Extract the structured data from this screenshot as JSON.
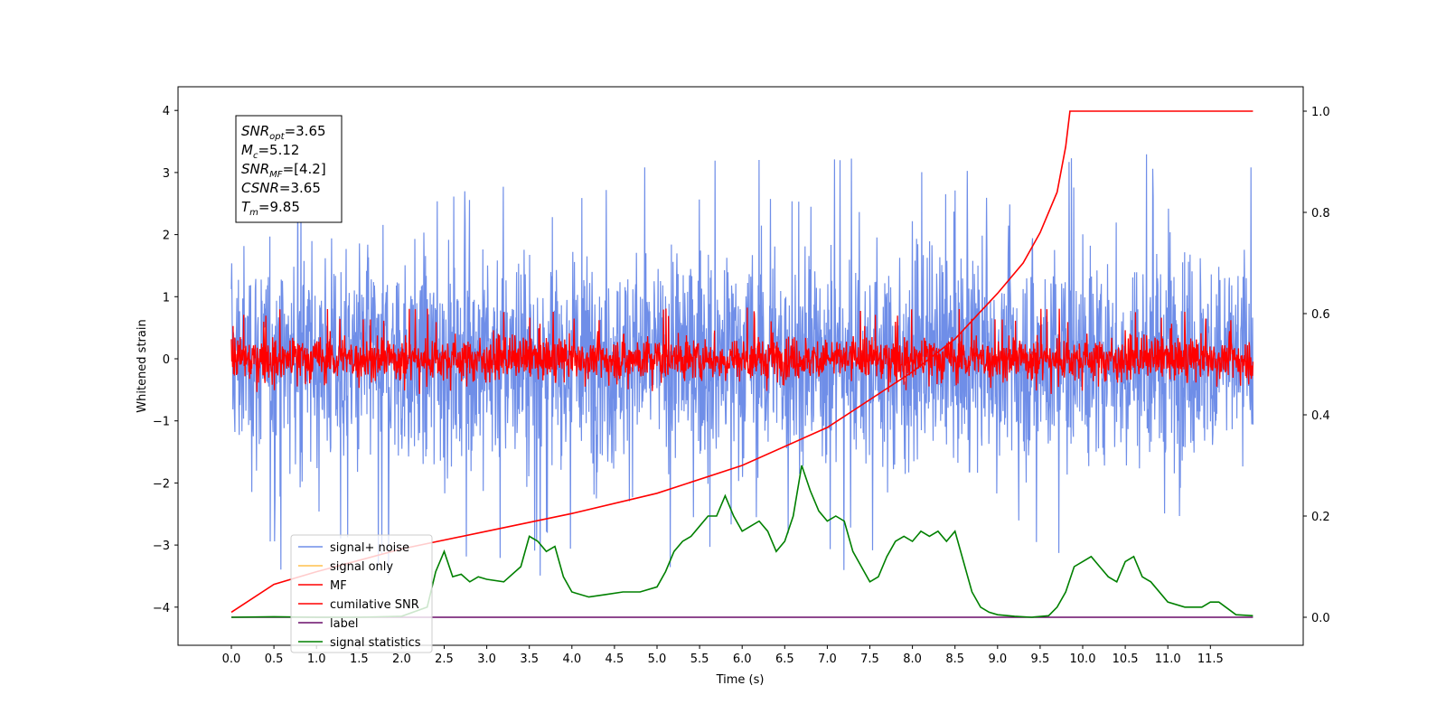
{
  "chart_data": {
    "type": "line",
    "xlabel": "Time (s)",
    "ylabel": "Whitened strain",
    "xlim": [
      -0.6,
      12.6
    ],
    "ylim": [
      -4.6,
      4.4
    ],
    "y2lim": [
      -0.05,
      1.05
    ],
    "grid": false,
    "legend_position": "lower-left",
    "xticks": [
      "0.0",
      "0.5",
      "1.0",
      "1.5",
      "2.0",
      "2.5",
      "3.0",
      "3.5",
      "4.0",
      "4.5",
      "5.0",
      "5.5",
      "6.0",
      "6.5",
      "7.0",
      "7.5",
      "8.0",
      "8.5",
      "9.0",
      "9.5",
      "10.0",
      "10.5",
      "11.0",
      "11.5"
    ],
    "yticks": [
      "4",
      "3",
      "2",
      "1",
      "0",
      "−1",
      "−2",
      "−3",
      "−4"
    ],
    "y2ticks": [
      "1.0",
      "0.8",
      "0.6",
      "0.4",
      "0.2",
      "0.0"
    ],
    "info_box": [
      {
        "sym": "SNR",
        "sub": "opt",
        "val": "=3.65"
      },
      {
        "sym": "M",
        "sub": "c",
        "val": "=5.12"
      },
      {
        "sym": "SNR",
        "sub": "MF",
        "val": "=[4.2]"
      },
      {
        "sym": "CSNR",
        "sub": "",
        "val": "=3.65"
      },
      {
        "sym": "T",
        "sub": "m",
        "val": "=9.85"
      }
    ],
    "series": [
      {
        "name": "signal+ noise",
        "color": "#6f8ee8",
        "kind": "noise",
        "center": 0.0,
        "band": [
          -2.7,
          2.6
        ],
        "x_range": [
          0.0,
          12.0
        ]
      },
      {
        "name": "signal only",
        "color": "#ffc04d",
        "kind": "flat",
        "values": []
      },
      {
        "name": "MF",
        "color": "#ff0000",
        "kind": "noise",
        "center": 0.0,
        "band": [
          -0.45,
          0.65
        ],
        "x_range": [
          0.0,
          12.0
        ]
      },
      {
        "name": "cumilative SNR",
        "color": "#ff0000",
        "axis": "right",
        "x": [
          0.0,
          0.5,
          1.0,
          2.0,
          3.0,
          4.0,
          5.0,
          6.0,
          7.0,
          8.0,
          8.5,
          9.0,
          9.3,
          9.5,
          9.7,
          9.8,
          9.85,
          10.5,
          11.0,
          12.0
        ],
        "values": [
          0.01,
          0.065,
          0.09,
          0.135,
          0.17,
          0.205,
          0.245,
          0.3,
          0.375,
          0.485,
          0.55,
          0.64,
          0.7,
          0.76,
          0.84,
          0.93,
          1.0,
          1.0,
          1.0,
          1.0
        ]
      },
      {
        "name": "label",
        "color": "#6a0d6a",
        "axis": "right",
        "x": [
          0.0,
          12.0
        ],
        "values": [
          0.0,
          0.0
        ]
      },
      {
        "name": "signal statistics",
        "color": "#008000",
        "axis": "right",
        "x": [
          0.0,
          0.5,
          1.0,
          1.5,
          2.0,
          2.3,
          2.4,
          2.5,
          2.6,
          2.7,
          2.8,
          2.9,
          3.0,
          3.2,
          3.4,
          3.5,
          3.6,
          3.7,
          3.8,
          3.9,
          4.0,
          4.2,
          4.4,
          4.6,
          4.8,
          5.0,
          5.1,
          5.2,
          5.3,
          5.4,
          5.5,
          5.6,
          5.7,
          5.8,
          5.9,
          6.0,
          6.1,
          6.2,
          6.3,
          6.4,
          6.5,
          6.6,
          6.7,
          6.8,
          6.9,
          7.0,
          7.1,
          7.2,
          7.3,
          7.4,
          7.5,
          7.6,
          7.7,
          7.8,
          7.9,
          8.0,
          8.1,
          8.2,
          8.3,
          8.4,
          8.5,
          8.6,
          8.7,
          8.8,
          8.9,
          9.0,
          9.2,
          9.4,
          9.6,
          9.7,
          9.8,
          9.9,
          10.0,
          10.1,
          10.2,
          10.3,
          10.4,
          10.5,
          10.6,
          10.7,
          10.8,
          11.0,
          11.2,
          11.4,
          11.5,
          11.6,
          11.8,
          12.0
        ],
        "values": [
          0.0,
          0.001,
          0.0,
          0.0,
          0.002,
          0.02,
          0.09,
          0.13,
          0.08,
          0.085,
          0.07,
          0.08,
          0.075,
          0.07,
          0.1,
          0.16,
          0.15,
          0.13,
          0.14,
          0.08,
          0.05,
          0.04,
          0.045,
          0.05,
          0.05,
          0.06,
          0.09,
          0.13,
          0.15,
          0.16,
          0.18,
          0.2,
          0.2,
          0.24,
          0.2,
          0.17,
          0.18,
          0.19,
          0.17,
          0.13,
          0.15,
          0.2,
          0.3,
          0.25,
          0.21,
          0.19,
          0.2,
          0.19,
          0.13,
          0.1,
          0.07,
          0.08,
          0.12,
          0.15,
          0.16,
          0.15,
          0.17,
          0.16,
          0.17,
          0.15,
          0.17,
          0.11,
          0.05,
          0.02,
          0.01,
          0.005,
          0.002,
          0.0,
          0.003,
          0.02,
          0.05,
          0.1,
          0.11,
          0.12,
          0.1,
          0.08,
          0.07,
          0.11,
          0.12,
          0.08,
          0.07,
          0.03,
          0.02,
          0.02,
          0.03,
          0.03,
          0.005,
          0.003
        ]
      }
    ]
  }
}
